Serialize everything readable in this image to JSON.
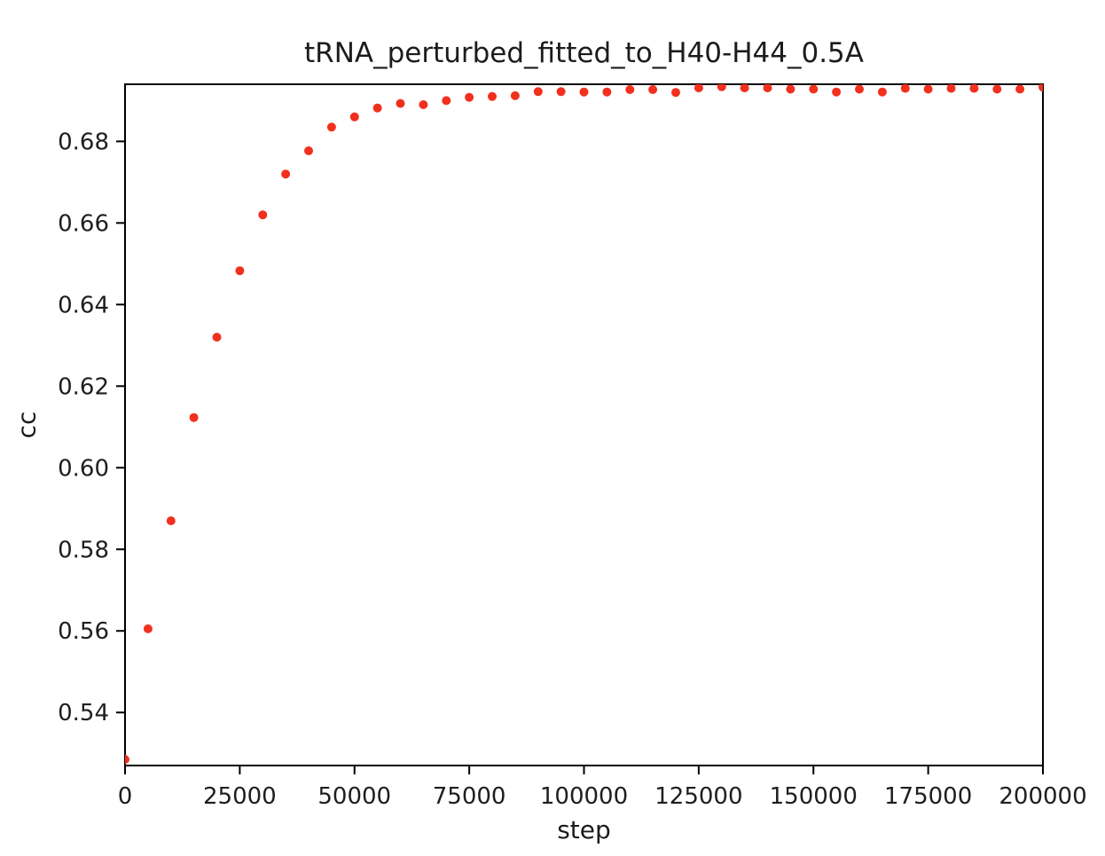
{
  "colors": {
    "background": "#ffffff",
    "marker": "#f2301e",
    "spine": "#000000",
    "text": "#1c1c1c"
  },
  "chart_data": {
    "type": "scatter",
    "title": "tRNA_perturbed_fitted_to_H40-H44_0.5A",
    "xlabel": "step",
    "ylabel": "cc",
    "xlim": [
      0,
      200000
    ],
    "ylim": [
      0.527,
      0.694
    ],
    "xticks": [
      0,
      25000,
      50000,
      75000,
      100000,
      125000,
      150000,
      175000,
      200000
    ],
    "yticks": [
      0.54,
      0.56,
      0.58,
      0.6,
      0.62,
      0.64,
      0.66,
      0.68
    ],
    "grid": false,
    "legend": null,
    "marker_color": "#f2301e",
    "marker_radius_px": 5,
    "series": [
      {
        "name": "cc",
        "x": [
          0,
          5000,
          10000,
          15000,
          20000,
          25000,
          30000,
          35000,
          40000,
          45000,
          50000,
          55000,
          60000,
          65000,
          70000,
          75000,
          80000,
          85000,
          90000,
          95000,
          100000,
          105000,
          110000,
          115000,
          120000,
          125000,
          130000,
          135000,
          140000,
          145000,
          150000,
          155000,
          160000,
          165000,
          170000,
          175000,
          180000,
          185000,
          190000,
          195000,
          200000
        ],
        "y": [
          0.5285,
          0.5605,
          0.587,
          0.6123,
          0.632,
          0.6483,
          0.662,
          0.672,
          0.6777,
          0.6835,
          0.686,
          0.6882,
          0.6893,
          0.689,
          0.69,
          0.6908,
          0.691,
          0.6912,
          0.6922,
          0.6922,
          0.6921,
          0.6921,
          0.6927,
          0.6927,
          0.692,
          0.6931,
          0.6934,
          0.6931,
          0.6931,
          0.6928,
          0.6928,
          0.6921,
          0.6928,
          0.6921,
          0.693,
          0.6928,
          0.693,
          0.693,
          0.6928,
          0.6928,
          0.6933
        ]
      }
    ]
  }
}
